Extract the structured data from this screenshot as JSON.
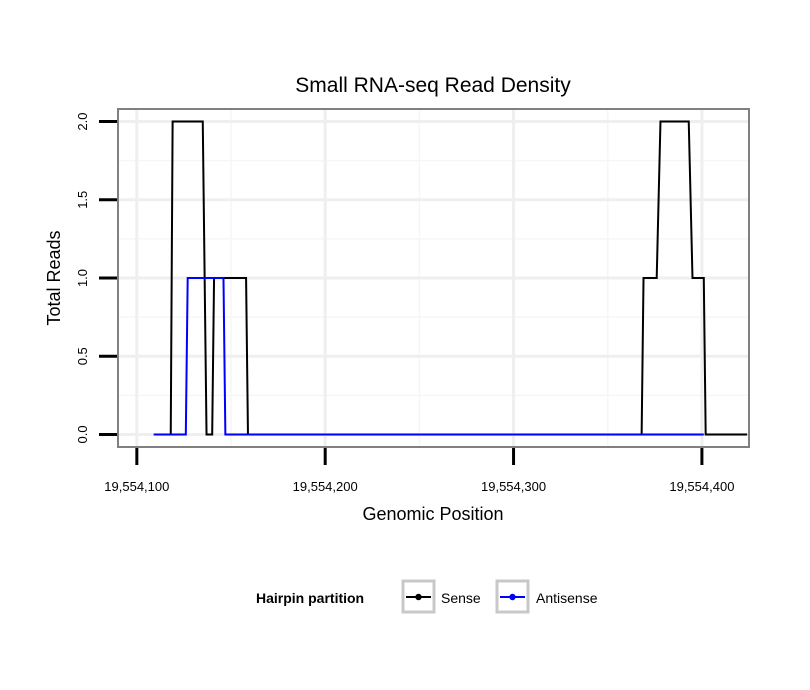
{
  "chart_data": {
    "type": "line",
    "title": "Small RNA-seq Read Density",
    "xlabel": "Genomic Position",
    "ylabel": "Total Reads",
    "xlim": [
      19554090,
      19554425
    ],
    "ylim": [
      -0.08,
      2.08
    ],
    "x_ticks": [
      19554100,
      19554200,
      19554300,
      19554400
    ],
    "x_tick_labels": [
      "19,554,100",
      "19,554,200",
      "19,554,300",
      "19,554,400"
    ],
    "y_ticks": [
      0,
      0.5,
      1,
      1.5,
      2
    ],
    "y_tick_labels": [
      "0.0",
      "0.5",
      "1.0",
      "1.5",
      "2.0"
    ],
    "grid": true,
    "legend": {
      "title": "Hairpin partition",
      "position": "bottom",
      "entries": [
        "Sense",
        "Antisense"
      ]
    },
    "series": [
      {
        "name": "Sense",
        "color": "#000000",
        "points": [
          [
            19554109,
            0
          ],
          [
            19554118,
            0
          ],
          [
            19554119,
            2
          ],
          [
            19554135,
            2
          ],
          [
            19554137,
            0
          ],
          [
            19554140,
            0
          ],
          [
            19554141,
            1
          ],
          [
            19554143,
            1
          ],
          [
            19554144,
            1
          ],
          [
            19554158,
            1
          ],
          [
            19554159,
            0
          ],
          [
            19554368,
            0
          ],
          [
            19554369,
            1
          ],
          [
            19554376,
            1
          ],
          [
            19554378,
            2
          ],
          [
            19554393,
            2
          ],
          [
            19554395,
            1
          ],
          [
            19554401,
            1
          ],
          [
            19554402,
            0
          ],
          [
            19554424,
            0
          ]
        ]
      },
      {
        "name": "Antisense",
        "color": "#0000ff",
        "points": [
          [
            19554109,
            0
          ],
          [
            19554126,
            0
          ],
          [
            19554127,
            1
          ],
          [
            19554146,
            1
          ],
          [
            19554147,
            0
          ],
          [
            19554159,
            0
          ],
          [
            19554401,
            0
          ]
        ]
      }
    ]
  }
}
